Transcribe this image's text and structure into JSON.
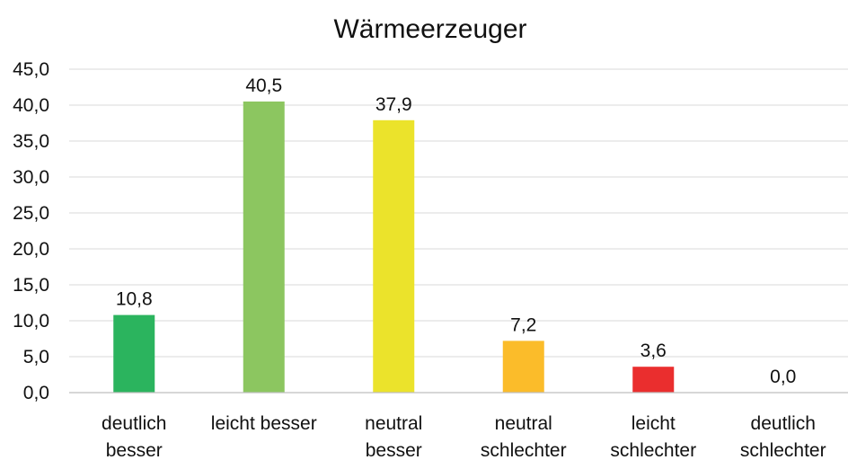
{
  "chart_data": {
    "type": "bar",
    "title": "Wärmeerzeuger",
    "xlabel": "",
    "ylabel": "",
    "ylim": [
      0,
      45
    ],
    "ytick_step": 5,
    "ytick_labels": [
      "0,0",
      "5,0",
      "10,0",
      "15,0",
      "20,0",
      "25,0",
      "30,0",
      "35,0",
      "40,0",
      "45,0"
    ],
    "grid": true,
    "legend": false,
    "categories": [
      [
        "deutlich",
        "besser"
      ],
      [
        "leicht besser"
      ],
      [
        "neutral",
        "besser"
      ],
      [
        "neutral",
        "schlechter"
      ],
      [
        "leicht",
        "schlechter"
      ],
      [
        "deutlich",
        "schlechter"
      ]
    ],
    "values": [
      10.8,
      40.5,
      37.9,
      7.2,
      3.6,
      0.0
    ],
    "value_labels": [
      "10,8",
      "40,5",
      "37,9",
      "7,2",
      "3,6",
      "0,0"
    ],
    "colors": [
      "#2bb45e",
      "#8cc660",
      "#ebe32b",
      "#fbbc2a",
      "#ea2e2e",
      "#2e7d32"
    ]
  }
}
